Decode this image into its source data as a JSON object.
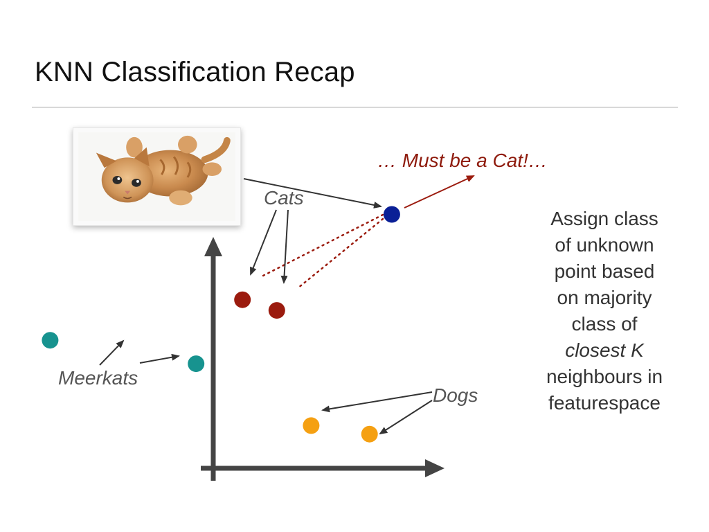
{
  "slide": {
    "title": "KNN Classification Recap"
  },
  "annotation": {
    "tagline": "… Must be a Cat!…",
    "explanation_line1": "Assign class",
    "explanation_line2": "of unknown",
    "explanation_line3": "point based",
    "explanation_line4": "on majority",
    "explanation_line5": "class of",
    "explanation_line6_italic": "closest K",
    "explanation_line7": "neighbours in",
    "explanation_line8": "featurespace"
  },
  "labels": {
    "cats": "Cats",
    "meerkats": "Meerkats",
    "dogs": "Dogs"
  },
  "image": {
    "subject": "kitten-photo"
  },
  "colors": {
    "cats": "#9b1b0e",
    "meerkats": "#17938f",
    "dogs": "#f5a012",
    "unknown": "#0a1f96",
    "axis": "#444444",
    "tagline": "#8e1a0c"
  },
  "points": {
    "cats": [
      {
        "x": 0.17,
        "y": 0.79
      },
      {
        "x": 0.37,
        "y": 0.74
      }
    ],
    "meerkats": [
      {
        "x": -0.95,
        "y": 0.6
      },
      {
        "x": -0.1,
        "y": 0.49
      }
    ],
    "dogs": [
      {
        "x": 0.57,
        "y": 0.2
      },
      {
        "x": 0.91,
        "y": 0.16
      }
    ],
    "unknown": {
      "x": 1.04,
      "y": 1.19
    }
  }
}
